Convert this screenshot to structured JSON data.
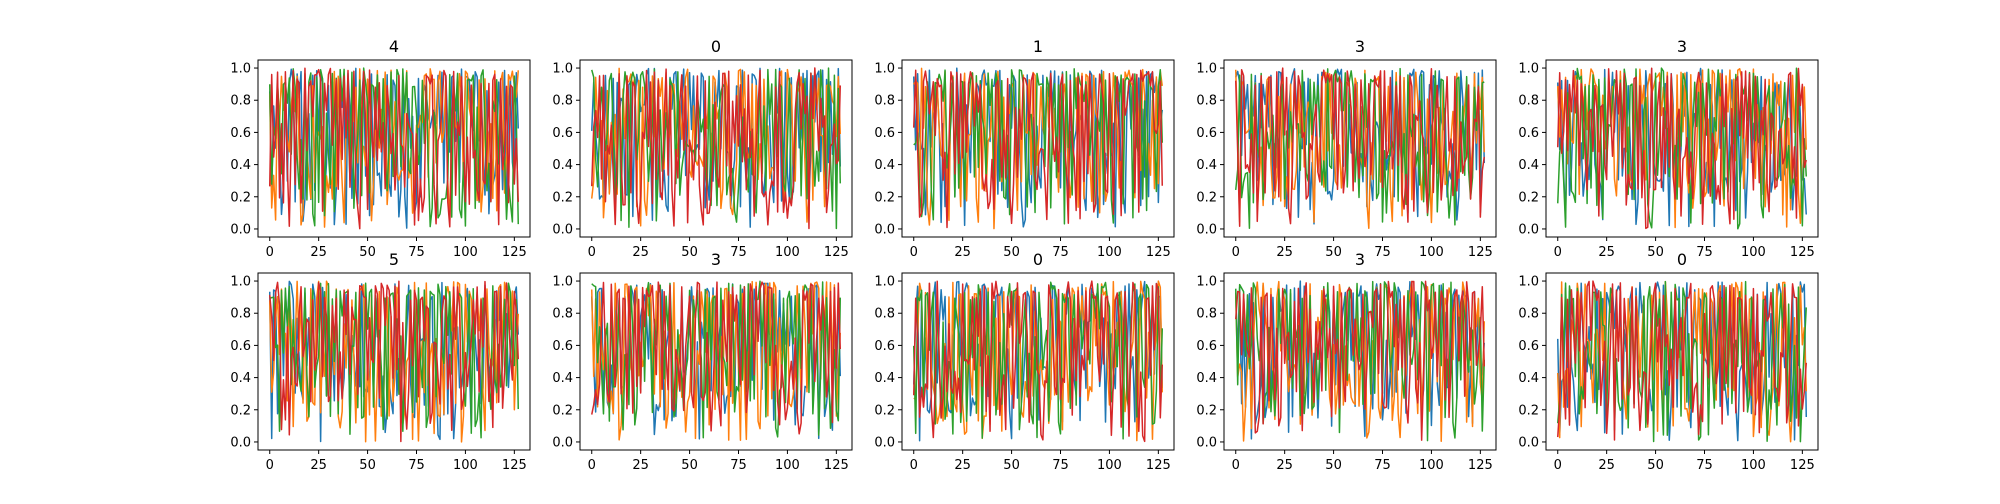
{
  "chart_data": [
    {
      "type": "line",
      "title": "4",
      "xlim": [
        -6,
        133
      ],
      "ylim": [
        -0.05,
        1.05
      ],
      "x_ticks": [
        0,
        25,
        50,
        75,
        100,
        125
      ],
      "y_ticks": [
        0.0,
        0.2,
        0.4,
        0.6,
        0.8,
        1.0
      ],
      "series_colors": [
        "#1f77b4",
        "#ff7f0e",
        "#2ca02c",
        "#d62728"
      ],
      "series_count": 4,
      "points_per_series": 128,
      "value_range": [
        0.0,
        1.0
      ]
    },
    {
      "type": "line",
      "title": "0",
      "xlim": [
        -6,
        133
      ],
      "ylim": [
        -0.05,
        1.05
      ],
      "x_ticks": [
        0,
        25,
        50,
        75,
        100,
        125
      ],
      "y_ticks": [
        0.0,
        0.2,
        0.4,
        0.6,
        0.8,
        1.0
      ],
      "series_colors": [
        "#1f77b4",
        "#ff7f0e",
        "#2ca02c",
        "#d62728"
      ],
      "series_count": 4,
      "points_per_series": 128,
      "value_range": [
        0.0,
        1.0
      ]
    },
    {
      "type": "line",
      "title": "1",
      "xlim": [
        -6,
        133
      ],
      "ylim": [
        -0.05,
        1.05
      ],
      "x_ticks": [
        0,
        25,
        50,
        75,
        100,
        125
      ],
      "y_ticks": [
        0.0,
        0.2,
        0.4,
        0.6,
        0.8,
        1.0
      ],
      "series_colors": [
        "#1f77b4",
        "#ff7f0e",
        "#2ca02c",
        "#d62728"
      ],
      "series_count": 4,
      "points_per_series": 128,
      "value_range": [
        0.0,
        1.0
      ]
    },
    {
      "type": "line",
      "title": "3",
      "xlim": [
        -6,
        133
      ],
      "ylim": [
        -0.05,
        1.05
      ],
      "x_ticks": [
        0,
        25,
        50,
        75,
        100,
        125
      ],
      "y_ticks": [
        0.0,
        0.2,
        0.4,
        0.6,
        0.8,
        1.0
      ],
      "series_colors": [
        "#1f77b4",
        "#ff7f0e",
        "#2ca02c",
        "#d62728"
      ],
      "series_count": 4,
      "points_per_series": 128,
      "value_range": [
        0.0,
        1.0
      ]
    },
    {
      "type": "line",
      "title": "3",
      "xlim": [
        -6,
        133
      ],
      "ylim": [
        -0.05,
        1.05
      ],
      "x_ticks": [
        0,
        25,
        50,
        75,
        100,
        125
      ],
      "y_ticks": [
        0.0,
        0.2,
        0.4,
        0.6,
        0.8,
        1.0
      ],
      "series_colors": [
        "#1f77b4",
        "#ff7f0e",
        "#2ca02c",
        "#d62728"
      ],
      "series_count": 4,
      "points_per_series": 128,
      "value_range": [
        0.0,
        1.0
      ]
    },
    {
      "type": "line",
      "title": "5",
      "xlim": [
        -6,
        133
      ],
      "ylim": [
        -0.05,
        1.05
      ],
      "x_ticks": [
        0,
        25,
        50,
        75,
        100,
        125
      ],
      "y_ticks": [
        0.0,
        0.2,
        0.4,
        0.6,
        0.8,
        1.0
      ],
      "series_colors": [
        "#1f77b4",
        "#ff7f0e",
        "#2ca02c",
        "#d62728"
      ],
      "series_count": 4,
      "points_per_series": 128,
      "value_range": [
        0.0,
        1.0
      ]
    },
    {
      "type": "line",
      "title": "3",
      "xlim": [
        -6,
        133
      ],
      "ylim": [
        -0.05,
        1.05
      ],
      "x_ticks": [
        0,
        25,
        50,
        75,
        100,
        125
      ],
      "y_ticks": [
        0.0,
        0.2,
        0.4,
        0.6,
        0.8,
        1.0
      ],
      "series_colors": [
        "#1f77b4",
        "#ff7f0e",
        "#2ca02c",
        "#d62728"
      ],
      "series_count": 4,
      "points_per_series": 128,
      "value_range": [
        0.0,
        1.0
      ]
    },
    {
      "type": "line",
      "title": "0",
      "xlim": [
        -6,
        133
      ],
      "ylim": [
        -0.05,
        1.05
      ],
      "x_ticks": [
        0,
        25,
        50,
        75,
        100,
        125
      ],
      "y_ticks": [
        0.0,
        0.2,
        0.4,
        0.6,
        0.8,
        1.0
      ],
      "series_colors": [
        "#1f77b4",
        "#ff7f0e",
        "#2ca02c",
        "#d62728"
      ],
      "series_count": 4,
      "points_per_series": 128,
      "value_range": [
        0.0,
        1.0
      ]
    },
    {
      "type": "line",
      "title": "3",
      "xlim": [
        -6,
        133
      ],
      "ylim": [
        -0.05,
        1.05
      ],
      "x_ticks": [
        0,
        25,
        50,
        75,
        100,
        125
      ],
      "y_ticks": [
        0.0,
        0.2,
        0.4,
        0.6,
        0.8,
        1.0
      ],
      "series_colors": [
        "#1f77b4",
        "#ff7f0e",
        "#2ca02c",
        "#d62728"
      ],
      "series_count": 4,
      "points_per_series": 128,
      "value_range": [
        0.0,
        1.0
      ]
    },
    {
      "type": "line",
      "title": "0",
      "xlim": [
        -6,
        133
      ],
      "ylim": [
        -0.05,
        1.05
      ],
      "x_ticks": [
        0,
        25,
        50,
        75,
        100,
        125
      ],
      "y_ticks": [
        0.0,
        0.2,
        0.4,
        0.6,
        0.8,
        1.0
      ],
      "series_colors": [
        "#1f77b4",
        "#ff7f0e",
        "#2ca02c",
        "#d62728"
      ],
      "series_count": 4,
      "points_per_series": 128,
      "value_range": [
        0.0,
        1.0
      ]
    }
  ]
}
